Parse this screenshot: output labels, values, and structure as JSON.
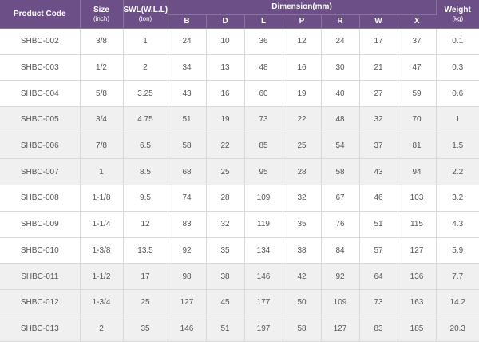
{
  "headers": {
    "product_code": "Product Code",
    "size": "Size",
    "size_unit": "(inch)",
    "swl": "SWL(W.L.L)",
    "swl_unit": "(ton)",
    "dimension": "Dimension(mm)",
    "weight": "Weight",
    "weight_unit": "(kg)",
    "dims": [
      "B",
      "D",
      "L",
      "P",
      "R",
      "W",
      "X"
    ]
  },
  "rows": [
    {
      "code": "SHBC-002",
      "size": "3/8",
      "swl": "1",
      "b": "24",
      "d": "10",
      "l": "36",
      "p": "12",
      "r": "24",
      "w": "17",
      "x": "37",
      "weight": "0.1"
    },
    {
      "code": "SHBC-003",
      "size": "1/2",
      "swl": "2",
      "b": "34",
      "d": "13",
      "l": "48",
      "p": "16",
      "r": "30",
      "w": "21",
      "x": "47",
      "weight": "0.3"
    },
    {
      "code": "SHBC-004",
      "size": "5/8",
      "swl": "3.25",
      "b": "43",
      "d": "16",
      "l": "60",
      "p": "19",
      "r": "40",
      "w": "27",
      "x": "59",
      "weight": "0.6"
    },
    {
      "code": "SHBC-005",
      "size": "3/4",
      "swl": "4.75",
      "b": "51",
      "d": "19",
      "l": "73",
      "p": "22",
      "r": "48",
      "w": "32",
      "x": "70",
      "weight": "1"
    },
    {
      "code": "SHBC-006",
      "size": "7/8",
      "swl": "6.5",
      "b": "58",
      "d": "22",
      "l": "85",
      "p": "25",
      "r": "54",
      "w": "37",
      "x": "81",
      "weight": "1.5"
    },
    {
      "code": "SHBC-007",
      "size": "1",
      "swl": "8.5",
      "b": "68",
      "d": "25",
      "l": "95",
      "p": "28",
      "r": "58",
      "w": "43",
      "x": "94",
      "weight": "2.2"
    },
    {
      "code": "SHBC-008",
      "size": "1-1/8",
      "swl": "9.5",
      "b": "74",
      "d": "28",
      "l": "109",
      "p": "32",
      "r": "67",
      "w": "46",
      "x": "103",
      "weight": "3.2"
    },
    {
      "code": "SHBC-009",
      "size": "1-1/4",
      "swl": "12",
      "b": "83",
      "d": "32",
      "l": "119",
      "p": "35",
      "r": "76",
      "w": "51",
      "x": "115",
      "weight": "4.3"
    },
    {
      "code": "SHBC-010",
      "size": "1-3/8",
      "swl": "13.5",
      "b": "92",
      "d": "35",
      "l": "134",
      "p": "38",
      "r": "84",
      "w": "57",
      "x": "127",
      "weight": "5.9"
    },
    {
      "code": "SHBC-011",
      "size": "1-1/2",
      "swl": "17",
      "b": "98",
      "d": "38",
      "l": "146",
      "p": "42",
      "r": "92",
      "w": "64",
      "x": "136",
      "weight": "7.7"
    },
    {
      "code": "SHBC-012",
      "size": "1-3/4",
      "swl": "25",
      "b": "127",
      "d": "45",
      "l": "177",
      "p": "50",
      "r": "109",
      "w": "73",
      "x": "163",
      "weight": "14.2"
    },
    {
      "code": "SHBC-013",
      "size": "2",
      "swl": "35",
      "b": "146",
      "d": "51",
      "l": "197",
      "p": "58",
      "r": "127",
      "w": "83",
      "x": "185",
      "weight": "20.3"
    }
  ],
  "shaded_groups": [
    false,
    true,
    false,
    true
  ]
}
